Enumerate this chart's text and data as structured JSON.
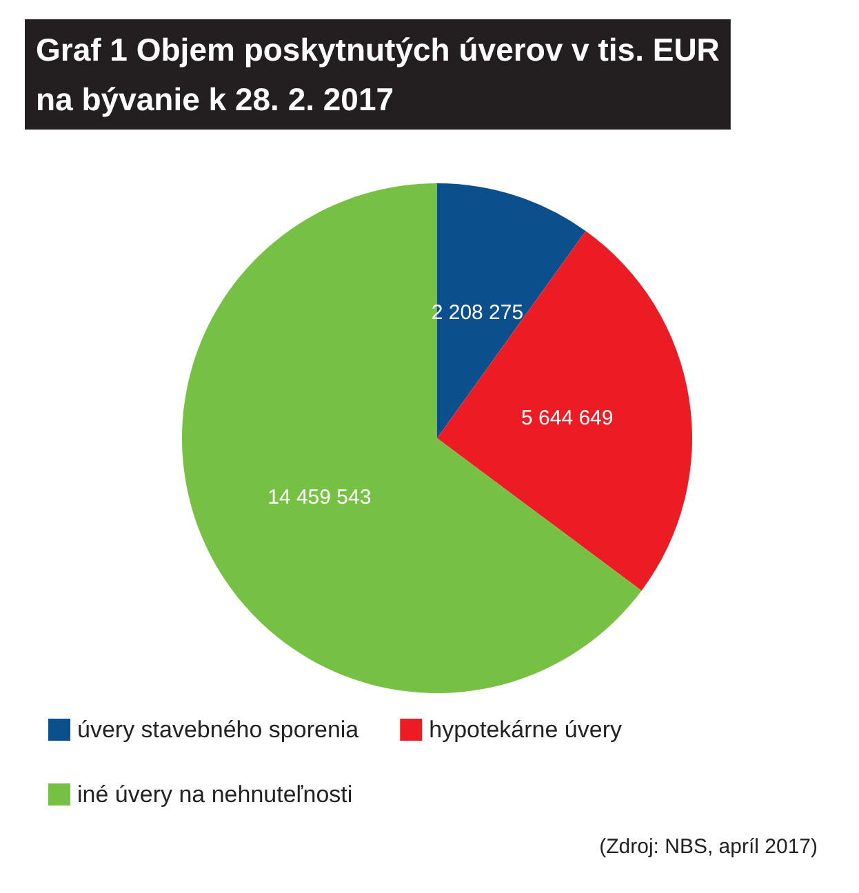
{
  "chart_data": {
    "type": "pie",
    "title": "Graf 1 Objem poskytnutých úverov v tis. EUR\nna bývanie k 28. 2. 2017",
    "categories": [
      "úvery stavebného sporenia",
      "hypotekárne úvery",
      "iné úvery na nehnuteľnosti"
    ],
    "values": [
      2208275,
      5644649,
      14459543
    ],
    "value_labels": [
      "2 208 275",
      "5 644 649",
      "14 459 543"
    ],
    "colors": [
      "#0b4f8c",
      "#ec1c24",
      "#76c043"
    ],
    "legend": "bottom",
    "annotations": [
      "(Zdroj: NBS, apríl 2017)"
    ]
  }
}
